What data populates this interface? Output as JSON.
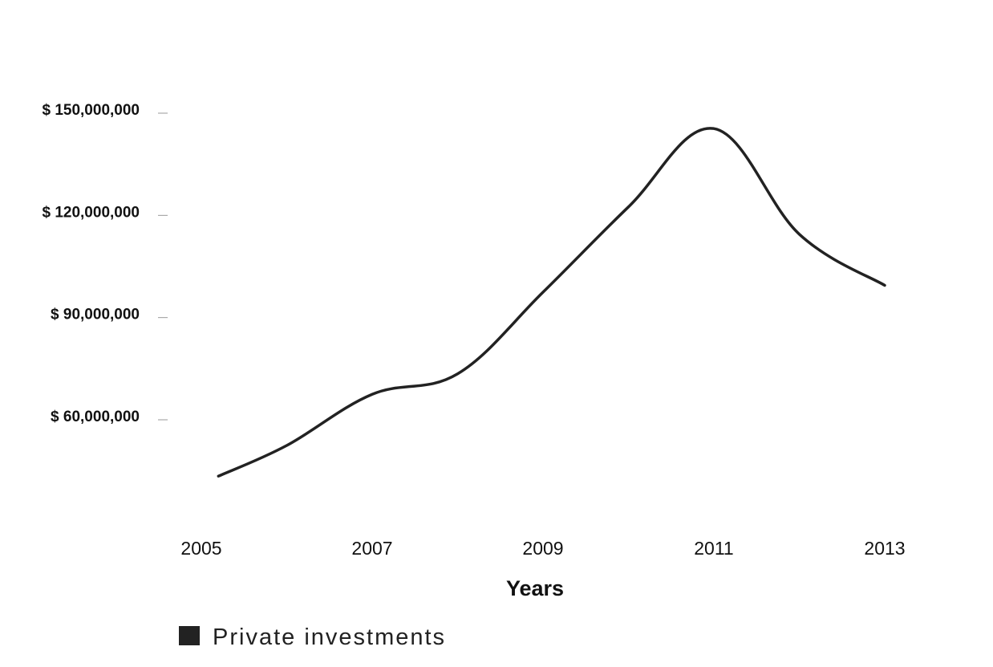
{
  "chart_data": {
    "type": "line",
    "title": "",
    "xlabel": "Years",
    "ylabel": "",
    "x_ticks": [
      "2005",
      "2007",
      "2009",
      "2011",
      "2013"
    ],
    "x_domain": [
      2005,
      2013
    ],
    "y_ticks": [
      {
        "value": 60000000,
        "label": "$ 60,000,000"
      },
      {
        "value": 90000000,
        "label": "$ 90,000,000"
      },
      {
        "value": 120000000,
        "label": "$ 120,000,000"
      },
      {
        "value": 150000000,
        "label": "$ 150,000,000"
      }
    ],
    "ylim": [
      30000000,
      150000000
    ],
    "grid": false,
    "legend_position": "bottom-left",
    "series": [
      {
        "name": "Private investments",
        "color": "#222222",
        "x": [
          2005.2,
          2006,
          2007,
          2008,
          2009,
          2010,
          2011,
          2012,
          2013
        ],
        "values": [
          43000000,
          52000000,
          67000000,
          73000000,
          97000000,
          122000000,
          145000000,
          114000000,
          99000000
        ]
      }
    ]
  }
}
